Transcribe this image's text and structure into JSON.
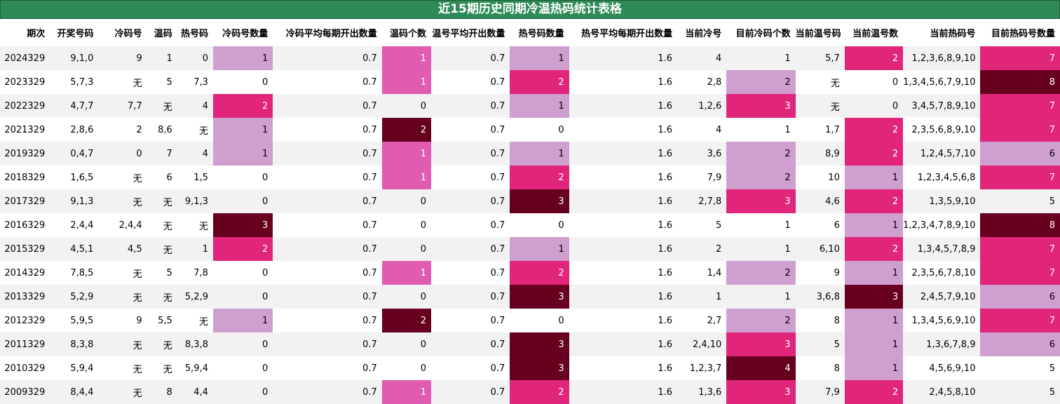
{
  "title": "近15期历史同期冷温热码统计表格",
  "columns": [
    "期次",
    "开奖号码",
    "冷码号",
    "温码",
    "热号码",
    "冷码号数量",
    "冷码平均每期开出数量",
    "温码个数",
    "温号平均开出数量",
    "热号码数量",
    "热号平均每期开出数量",
    "当前冷号",
    "目前冷码个数",
    "当前温号码",
    "当前温号数",
    "当前热码号",
    "目前热码号数量"
  ],
  "colors": {
    "light_pink": "#cf9fcf",
    "pink": "#e05cb0",
    "magenta": "#e0257a",
    "dark_maroon": "#67001f",
    "header_green": "#2e8b57"
  },
  "rows": [
    [
      "2024329",
      "9,1,0",
      "9",
      "1",
      "0",
      "1",
      "0.7",
      "1",
      "0.7",
      "1",
      "1.6",
      "4",
      "1",
      "5,7",
      "2",
      "1,2,3,6,8,9,10",
      "7"
    ],
    [
      "2023329",
      "5,7,3",
      "无",
      "5",
      "7,3",
      "0",
      "0.7",
      "1",
      "0.7",
      "2",
      "1.6",
      "2,8",
      "2",
      "无",
      "0",
      "1,3,4,5,6,7,9,10",
      "8"
    ],
    [
      "2022329",
      "4,7,7",
      "7,7",
      "无",
      "4",
      "2",
      "0.7",
      "0",
      "0.7",
      "1",
      "1.6",
      "1,2,6",
      "3",
      "无",
      "0",
      "3,4,5,7,8,9,10",
      "7"
    ],
    [
      "2021329",
      "2,8,6",
      "2",
      "8,6",
      "无",
      "1",
      "0.7",
      "2",
      "0.7",
      "0",
      "1.6",
      "4",
      "1",
      "1,7",
      "2",
      "2,3,5,6,8,9,10",
      "7"
    ],
    [
      "2019329",
      "0,4,7",
      "0",
      "7",
      "4",
      "1",
      "0.7",
      "1",
      "0.7",
      "1",
      "1.6",
      "3,6",
      "2",
      "8,9",
      "2",
      "1,2,4,5,7,10",
      "6"
    ],
    [
      "2018329",
      "1,6,5",
      "无",
      "6",
      "1,5",
      "0",
      "0.7",
      "1",
      "0.7",
      "2",
      "1.6",
      "7,9",
      "2",
      "10",
      "1",
      "1,2,3,4,5,6,8",
      "7"
    ],
    [
      "2017329",
      "9,1,3",
      "无",
      "无",
      "9,1,3",
      "0",
      "0.7",
      "0",
      "0.7",
      "3",
      "1.6",
      "2,7,8",
      "3",
      "4,6",
      "2",
      "1,3,5,9,10",
      "5"
    ],
    [
      "2016329",
      "2,4,4",
      "2,4,4",
      "无",
      "无",
      "3",
      "0.7",
      "0",
      "0.7",
      "0",
      "1.6",
      "5",
      "1",
      "6",
      "1",
      "1,2,3,4,7,8,9,10",
      "8"
    ],
    [
      "2015329",
      "4,5,1",
      "4,5",
      "无",
      "1",
      "2",
      "0.7",
      "0",
      "0.7",
      "1",
      "1.6",
      "2",
      "1",
      "6,10",
      "2",
      "1,3,4,5,7,8,9",
      "7"
    ],
    [
      "2014329",
      "7,8,5",
      "无",
      "5",
      "7,8",
      "0",
      "0.7",
      "1",
      "0.7",
      "2",
      "1.6",
      "1,4",
      "2",
      "9",
      "1",
      "2,3,5,6,7,8,10",
      "7"
    ],
    [
      "2013329",
      "5,2,9",
      "无",
      "无",
      "5,2,9",
      "0",
      "0.7",
      "0",
      "0.7",
      "3",
      "1.6",
      "1",
      "1",
      "3,6,8",
      "3",
      "2,4,5,7,9,10",
      "6"
    ],
    [
      "2012329",
      "5,9,5",
      "9",
      "5,5",
      "无",
      "1",
      "0.7",
      "2",
      "0.7",
      "0",
      "1.6",
      "2,7",
      "2",
      "8",
      "1",
      "1,3,4,5,6,9,10",
      "7"
    ],
    [
      "2011329",
      "8,3,8",
      "无",
      "无",
      "8,3,8",
      "0",
      "0.7",
      "0",
      "0.7",
      "3",
      "1.6",
      "2,4,10",
      "3",
      "5",
      "1",
      "1,3,6,7,8,9",
      "6"
    ],
    [
      "2010329",
      "5,9,4",
      "无",
      "无",
      "5,9,4",
      "0",
      "0.7",
      "0",
      "0.7",
      "3",
      "1.6",
      "1,2,3,7",
      "4",
      "8",
      "1",
      "4,5,6,9,10",
      "5"
    ],
    [
      "2009329",
      "8,4,4",
      "无",
      "8",
      "4,4",
      "0",
      "0.7",
      "1",
      "0.7",
      "2",
      "1.6",
      "1,3,6",
      "3",
      "7,9",
      "2",
      "2,4,5,8,10",
      "5"
    ]
  ]
}
